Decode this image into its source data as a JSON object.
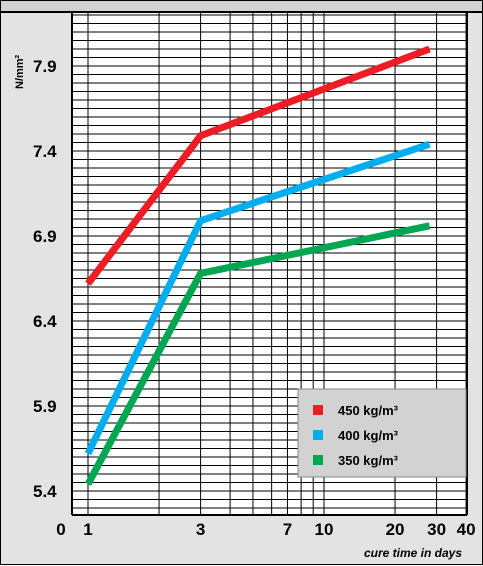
{
  "chart_data": {
    "type": "line",
    "title": "",
    "xlabel": "cure time in days",
    "ylabel": "N/mm²",
    "x_scale": "log",
    "x_ticks": [
      "0",
      "1",
      "3",
      "7",
      "10",
      "20",
      "30",
      "40"
    ],
    "y_ticks": [
      "5.4",
      "5.9",
      "6.4",
      "6.9",
      "7.4",
      "7.9"
    ],
    "ylim": [
      5.25,
      8.25
    ],
    "grid": true,
    "legend_position": "bottom-right",
    "series": [
      {
        "name": "450 kg/m³",
        "color": "#ee1c24",
        "x": [
          1,
          3,
          28
        ],
        "y": [
          6.62,
          7.49,
          8.0
        ]
      },
      {
        "name": "400 kg/m³",
        "color": "#00aeef",
        "x": [
          1,
          3,
          28
        ],
        "y": [
          5.62,
          6.99,
          7.44
        ]
      },
      {
        "name": "350 kg/m³",
        "color": "#00a651",
        "x": [
          1,
          3,
          28
        ],
        "y": [
          5.44,
          6.68,
          6.96
        ]
      }
    ]
  }
}
